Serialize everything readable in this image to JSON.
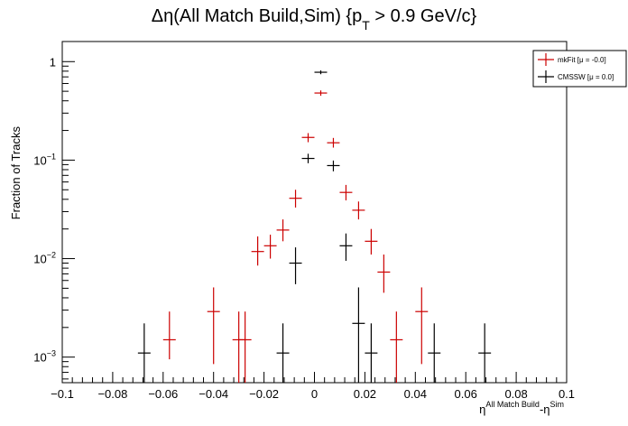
{
  "chart_data": {
    "type": "scatter",
    "title": "Δη(All Match Build,Sim) {p",
    "title_sub": "T",
    "title_tail": " > 0.9 GeV/c}",
    "ylabel": "Fraction of Tracks",
    "xlabel_main": "η",
    "xlabel_sup1": "All Match Build",
    "xlabel_mid": "-η",
    "xlabel_sup2": "Sim",
    "xlim": [
      -0.1,
      0.1
    ],
    "ylim": [
      0.00055,
      1.6
    ],
    "y_scale": "log",
    "grid": false,
    "legend_position": "top-right",
    "x_ticks": [
      -0.1,
      -0.08,
      -0.06,
      -0.04,
      -0.02,
      0,
      0.02,
      0.04,
      0.06,
      0.08,
      0.1
    ],
    "x_tick_labels": [
      "−0.1",
      "−0.08",
      "−0.06",
      "−0.04",
      "−0.02",
      "0",
      "0.02",
      "0.04",
      "0.06",
      "0.08",
      "0.1"
    ],
    "y_ticks": [
      {
        "value": 1,
        "base": "1",
        "exp": ""
      },
      {
        "value": 0.1,
        "base": "10",
        "exp": "−1"
      },
      {
        "value": 0.01,
        "base": "10",
        "exp": "−2"
      },
      {
        "value": 0.001,
        "base": "10",
        "exp": "−3"
      }
    ],
    "bin_half_width": 0.0025,
    "series": [
      {
        "name": "mkFit  [μ = -0.0]",
        "color": "#cc0000",
        "points": [
          {
            "x": -0.0575,
            "y": 0.0015,
            "ylo": 0.00095,
            "yhi": 0.0029
          },
          {
            "x": -0.04,
            "y": 0.0029,
            "ylo": 0.00085,
            "yhi": 0.0051
          },
          {
            "x": -0.03,
            "y": 0.0015,
            "ylo": 0.00055,
            "yhi": 0.0029
          },
          {
            "x": -0.0275,
            "y": 0.0015,
            "ylo": 0.00055,
            "yhi": 0.0029
          },
          {
            "x": -0.0225,
            "y": 0.0118,
            "ylo": 0.0085,
            "yhi": 0.0168
          },
          {
            "x": -0.0175,
            "y": 0.0135,
            "ylo": 0.01,
            "yhi": 0.0175
          },
          {
            "x": -0.0125,
            "y": 0.0195,
            "ylo": 0.015,
            "yhi": 0.025
          },
          {
            "x": -0.0075,
            "y": 0.041,
            "ylo": 0.033,
            "yhi": 0.05
          },
          {
            "x": -0.0025,
            "y": 0.17,
            "ylo": 0.152,
            "yhi": 0.188
          },
          {
            "x": 0.0025,
            "y": 0.48,
            "ylo": 0.45,
            "yhi": 0.51
          },
          {
            "x": 0.0075,
            "y": 0.15,
            "ylo": 0.134,
            "yhi": 0.168
          },
          {
            "x": 0.0125,
            "y": 0.047,
            "ylo": 0.039,
            "yhi": 0.056
          },
          {
            "x": 0.0175,
            "y": 0.031,
            "ylo": 0.025,
            "yhi": 0.038
          },
          {
            "x": 0.0225,
            "y": 0.015,
            "ylo": 0.011,
            "yhi": 0.02
          },
          {
            "x": 0.0275,
            "y": 0.0073,
            "ylo": 0.0045,
            "yhi": 0.011
          },
          {
            "x": 0.0325,
            "y": 0.0015,
            "ylo": 0.00055,
            "yhi": 0.0029
          },
          {
            "x": 0.0425,
            "y": 0.0029,
            "ylo": 0.00085,
            "yhi": 0.0051
          }
        ]
      },
      {
        "name": "CMSSW  [μ =  0.0]",
        "color": "#000000",
        "points": [
          {
            "x": -0.0675,
            "y": 0.0011,
            "ylo": 0.00055,
            "yhi": 0.0022
          },
          {
            "x": -0.0125,
            "y": 0.0011,
            "ylo": 0.00055,
            "yhi": 0.0022
          },
          {
            "x": -0.0075,
            "y": 0.009,
            "ylo": 0.0055,
            "yhi": 0.013
          },
          {
            "x": -0.0025,
            "y": 0.104,
            "ylo": 0.093,
            "yhi": 0.116
          },
          {
            "x": 0.0025,
            "y": 0.78,
            "ylo": 0.745,
            "yhi": 0.815
          },
          {
            "x": 0.0075,
            "y": 0.088,
            "ylo": 0.077,
            "yhi": 0.099
          },
          {
            "x": 0.0125,
            "y": 0.0135,
            "ylo": 0.0095,
            "yhi": 0.018
          },
          {
            "x": 0.0175,
            "y": 0.0022,
            "ylo": 0.00055,
            "yhi": 0.0051
          },
          {
            "x": 0.0225,
            "y": 0.0011,
            "ylo": 0.00055,
            "yhi": 0.0022
          },
          {
            "x": 0.0475,
            "y": 0.0011,
            "ylo": 0.00055,
            "yhi": 0.0022
          },
          {
            "x": 0.0675,
            "y": 0.0011,
            "ylo": 0.00055,
            "yhi": 0.0022
          }
        ]
      }
    ]
  }
}
